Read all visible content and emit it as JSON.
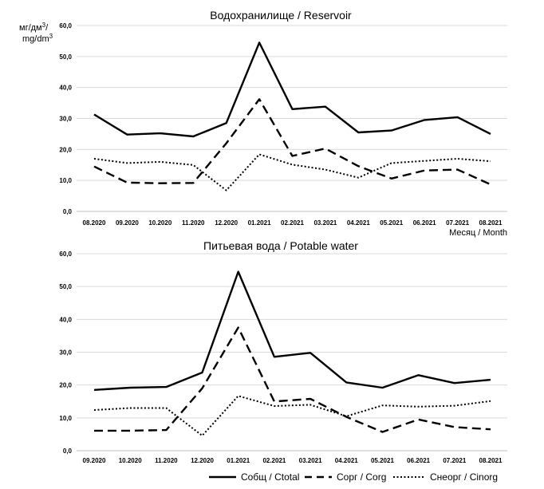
{
  "unit_label": "мг/дм³/ mg/dm³",
  "chart_data": [
    {
      "type": "line",
      "title": "Водохранилище / Reservoir",
      "xlabel": "Месяц / Month",
      "ylabel": "мг/дм³/ mg/dm³",
      "ylim": [
        0,
        60
      ],
      "y_ticks": [
        "0,0",
        "10,0",
        "20,0",
        "30,0",
        "40,0",
        "50,0",
        "60,0"
      ],
      "grid": true,
      "categories": [
        "08.2020",
        "09.2020",
        "10.2020",
        "11.2020",
        "12.2020",
        "01.2021",
        "02.2021",
        "03.2021",
        "04.2021",
        "05.2021",
        "06.2021",
        "07.2021",
        "08.2021"
      ],
      "series": [
        {
          "name": "Cобщ / Ctotal",
          "style": "solid",
          "values": [
            31.3,
            24.8,
            25.2,
            24.2,
            28.5,
            54.5,
            33.0,
            33.8,
            25.5,
            26.1,
            29.5,
            30.4,
            25.0
          ]
        },
        {
          "name": "Cорг / Corg",
          "style": "dashed",
          "values": [
            14.5,
            9.3,
            9.1,
            9.2,
            22.0,
            36.2,
            17.9,
            20.3,
            14.6,
            10.6,
            13.2,
            13.5,
            8.7
          ]
        },
        {
          "name": "Cнеорг / Cinorg",
          "style": "dotted",
          "values": [
            17.0,
            15.6,
            16.0,
            15.0,
            6.8,
            18.4,
            15.1,
            13.5,
            10.9,
            15.6,
            16.3,
            17.0,
            16.2
          ]
        }
      ]
    },
    {
      "type": "line",
      "title": "Питьевая вода / Potable water",
      "xlabel": "",
      "ylabel": "",
      "ylim": [
        0,
        60
      ],
      "y_ticks": [
        "0,0",
        "10,0",
        "20,0",
        "30,0",
        "40,0",
        "50,0",
        "60,0"
      ],
      "grid": true,
      "categories": [
        "09.2020",
        "10.2020",
        "11.2020",
        "12.2020",
        "01.2021",
        "02.2021",
        "03.2021",
        "04.2021",
        "05.2021",
        "06.2021",
        "07.2021",
        "08.2021"
      ],
      "series": [
        {
          "name": "Cобщ / Ctotal",
          "style": "solid",
          "values": [
            18.5,
            19.2,
            19.4,
            23.8,
            54.5,
            28.6,
            29.8,
            20.8,
            19.2,
            23.0,
            20.6,
            21.6
          ]
        },
        {
          "name": "Cорг / Corg",
          "style": "dashed",
          "values": [
            6.1,
            6.1,
            6.3,
            19.0,
            37.5,
            15.0,
            15.8,
            10.3,
            5.7,
            9.5,
            7.2,
            6.5
          ]
        },
        {
          "name": "Cнеорг / Cinorg",
          "style": "dotted",
          "values": [
            12.4,
            13.0,
            13.0,
            4.6,
            16.7,
            13.6,
            14.0,
            10.5,
            13.8,
            13.4,
            13.7,
            15.1
          ]
        }
      ]
    }
  ],
  "legend": {
    "placement": "bottom-right",
    "items": [
      {
        "label": "Cобщ / Ctotal",
        "style": "solid"
      },
      {
        "label": "Cорг / Corg",
        "style": "dashed"
      },
      {
        "label": "Cнеорг / Cinorg",
        "style": "dotted"
      }
    ]
  }
}
